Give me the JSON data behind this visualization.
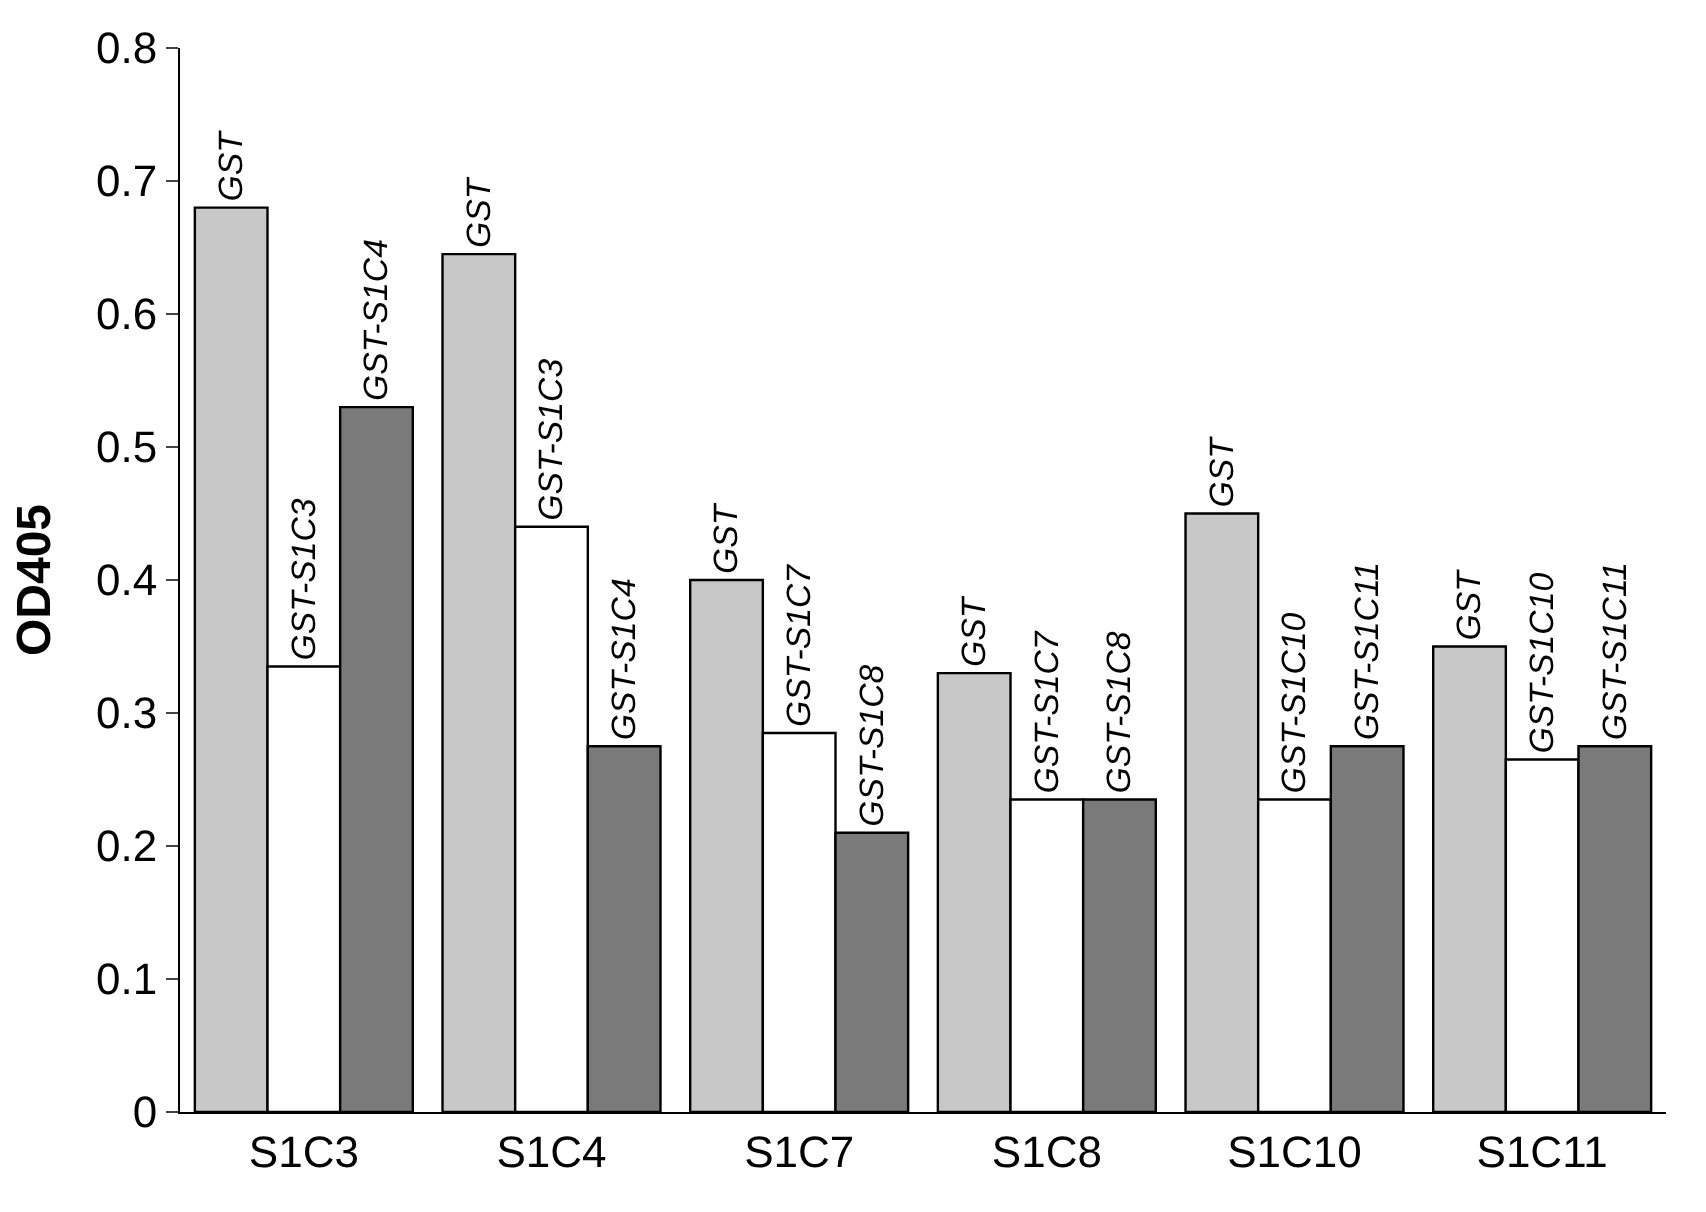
{
  "chart_data": {
    "type": "bar",
    "ylabel": "OD405",
    "categories": [
      "S1C3",
      "S1C4",
      "S1C7",
      "S1C8",
      "S1C10",
      "S1C11"
    ],
    "series": [
      {
        "color": "#c8c8c8",
        "values": [
          0.68,
          0.645,
          0.4,
          0.33,
          0.45,
          0.35
        ],
        "value_labels": [
          "GST",
          "GST",
          "GST",
          "GST",
          "GST",
          "GST"
        ]
      },
      {
        "color": "#ffffff",
        "values": [
          0.335,
          0.44,
          0.285,
          0.235,
          0.235,
          0.265
        ],
        "value_labels": [
          "GST-S1C3",
          "GST-S1C3",
          "GST-S1C7",
          "GST-S1C7",
          "GST-S1C10",
          "GST-S1C10"
        ]
      },
      {
        "color": "#7a7a7a",
        "values": [
          0.53,
          0.275,
          0.21,
          0.235,
          0.275,
          0.275
        ],
        "value_labels": [
          "GST-S1C4",
          "GST-S1C4",
          "GST-S1C8",
          "GST-S1C8",
          "GST-S1C11",
          "GST-S1C11"
        ]
      }
    ],
    "ylim": [
      0,
      0.8
    ],
    "yticks": [
      0,
      0.1,
      0.2,
      0.3,
      0.4,
      0.5,
      0.6,
      0.7,
      0.8
    ],
    "legend": false
  }
}
